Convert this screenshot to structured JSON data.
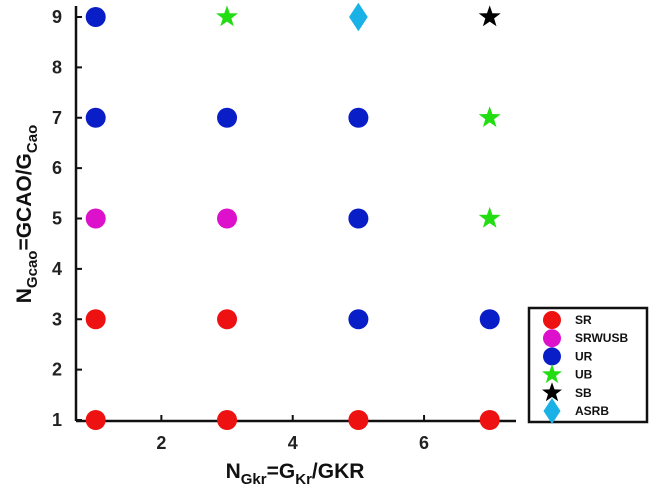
{
  "chart_data": {
    "type": "scatter",
    "xlabel": {
      "main": "N",
      "sub": "Gkr",
      "mid": "=G",
      "sub2": "Kr",
      "end": "/GKR"
    },
    "ylabel": {
      "main": "N",
      "sub": "Gcao",
      "mid": "=GCAO/G",
      "sub2": "Cao"
    },
    "xlim": [
      0.7,
      7.4
    ],
    "ylim": [
      1,
      9
    ],
    "xticks": [
      2,
      4,
      6
    ],
    "yticks": [
      1,
      2,
      3,
      4,
      5,
      6,
      7,
      8,
      9
    ],
    "grid": false,
    "legend_position": "bottom-right outside",
    "series": [
      {
        "name": "SR",
        "marker": "circle",
        "color": "#ee1111",
        "points": [
          [
            1,
            1
          ],
          [
            3,
            1
          ],
          [
            5,
            1
          ],
          [
            7,
            1
          ],
          [
            1,
            3
          ],
          [
            3,
            3
          ]
        ]
      },
      {
        "name": "SRWUSB",
        "marker": "circle",
        "color": "#dd11cc",
        "points": [
          [
            1,
            5
          ],
          [
            3,
            5
          ]
        ]
      },
      {
        "name": "UR",
        "marker": "circle",
        "color": "#0a1ec8",
        "points": [
          [
            5,
            3
          ],
          [
            7,
            3
          ],
          [
            5,
            5
          ],
          [
            1,
            7
          ],
          [
            3,
            7
          ],
          [
            5,
            7
          ],
          [
            1,
            9
          ]
        ]
      },
      {
        "name": "UB",
        "marker": "star",
        "color": "#22dd11",
        "points": [
          [
            7,
            5
          ],
          [
            7,
            7
          ],
          [
            3,
            9
          ]
        ]
      },
      {
        "name": "SB",
        "marker": "star",
        "color": "#000000",
        "points": [
          [
            7,
            9
          ]
        ]
      },
      {
        "name": "ASRB",
        "marker": "diamond",
        "color": "#1ab2e6",
        "points": [
          [
            5,
            9
          ]
        ]
      }
    ]
  }
}
